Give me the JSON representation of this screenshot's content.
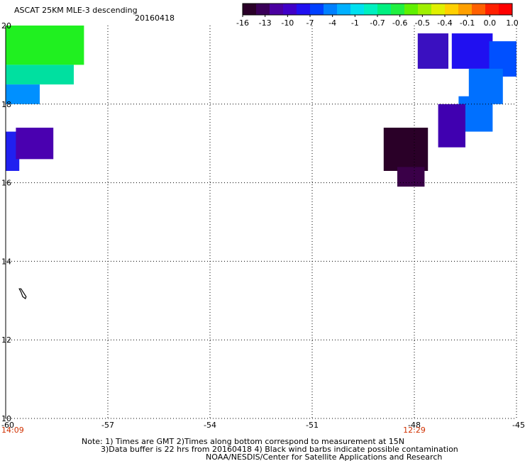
{
  "header": {
    "title": "ASCAT 25KM MLE-3 descending",
    "date": "20160418"
  },
  "colorbar": {
    "colors": [
      "#2a0028",
      "#3a0058",
      "#4a00a0",
      "#4000c8",
      "#2010f0",
      "#0040ff",
      "#0080ff",
      "#00b0ff",
      "#00e0f0",
      "#00f0c0",
      "#00f080",
      "#20f040",
      "#60f000",
      "#a0f000",
      "#e0f000",
      "#ffd000",
      "#ffa000",
      "#ff6000",
      "#ff2000",
      "#ff0000"
    ],
    "labels": [
      "-16",
      "-13",
      "-10",
      "-7",
      "-4",
      "-1",
      "-0.7",
      "-0.6",
      "-0.5",
      "-0.4",
      "-0.1",
      "0.0",
      "1.0"
    ]
  },
  "map": {
    "lon_labels": [
      "-60",
      "-57",
      "-54",
      "-51",
      "-48",
      "-45"
    ],
    "lat_labels": [
      "20",
      "18",
      "16",
      "14",
      "12",
      "10"
    ],
    "time_labels": [
      {
        "lon": -60,
        "text": "14:09"
      },
      {
        "lon": -48,
        "text": "12:29"
      }
    ],
    "time_color": "#d03000",
    "swaths": [
      {
        "lon": [
          -60,
          -57.7
        ],
        "lat": [
          19.0,
          20.0
        ],
        "color": "#20f020"
      },
      {
        "lon": [
          -60,
          -58.0
        ],
        "lat": [
          18.5,
          19.0
        ],
        "color": "#00e0a0"
      },
      {
        "lon": [
          -60,
          -59.0
        ],
        "lat": [
          18.0,
          18.5
        ],
        "color": "#0090ff"
      },
      {
        "lon": [
          -60,
          -59.6
        ],
        "lat": [
          16.3,
          17.3
        ],
        "color": "#2020f0"
      },
      {
        "lon": [
          -59.7,
          -58.6
        ],
        "lat": [
          16.6,
          17.4
        ],
        "color": "#4a00b0"
      },
      {
        "lon": [
          -47.9,
          -47.0
        ],
        "lat": [
          18.9,
          19.8
        ],
        "color": "#3a10c0"
      },
      {
        "lon": [
          -46.9,
          -45.7
        ],
        "lat": [
          18.9,
          19.8
        ],
        "color": "#2010f0"
      },
      {
        "lon": [
          -45.8,
          -45.0
        ],
        "lat": [
          18.7,
          19.6
        ],
        "color": "#0050ff"
      },
      {
        "lon": [
          -46.4,
          -45.4
        ],
        "lat": [
          18.0,
          18.9
        ],
        "color": "#0070ff"
      },
      {
        "lon": [
          -46.7,
          -45.7
        ],
        "lat": [
          17.3,
          18.2
        ],
        "color": "#0070ff"
      },
      {
        "lon": [
          -47.3,
          -46.5
        ],
        "lat": [
          16.9,
          18.0
        ],
        "color": "#4000b0"
      },
      {
        "lon": [
          -48.9,
          -47.6
        ],
        "lat": [
          16.3,
          17.4
        ],
        "color": "#2a0028"
      },
      {
        "lon": [
          -48.5,
          -47.7
        ],
        "lat": [
          15.9,
          16.4
        ],
        "color": "#3a0048"
      }
    ],
    "island": [
      [
        -59.6,
        13.3
      ],
      [
        -59.55,
        13.22
      ],
      [
        -59.5,
        13.1
      ],
      [
        -59.42,
        13.05
      ],
      [
        -59.4,
        13.1
      ],
      [
        -59.55,
        13.3
      ]
    ]
  },
  "footer": {
    "note_line1": "Note: 1) Times are GMT 2)Times along bottom correspond to measurement at 15N",
    "note_line2": "3)Data buffer is 22 hrs from 20160418 4) Black wind barbs indicate possible contamination",
    "credit": "NOAA/NESDIS/Center for Satellite Applications and Research"
  }
}
